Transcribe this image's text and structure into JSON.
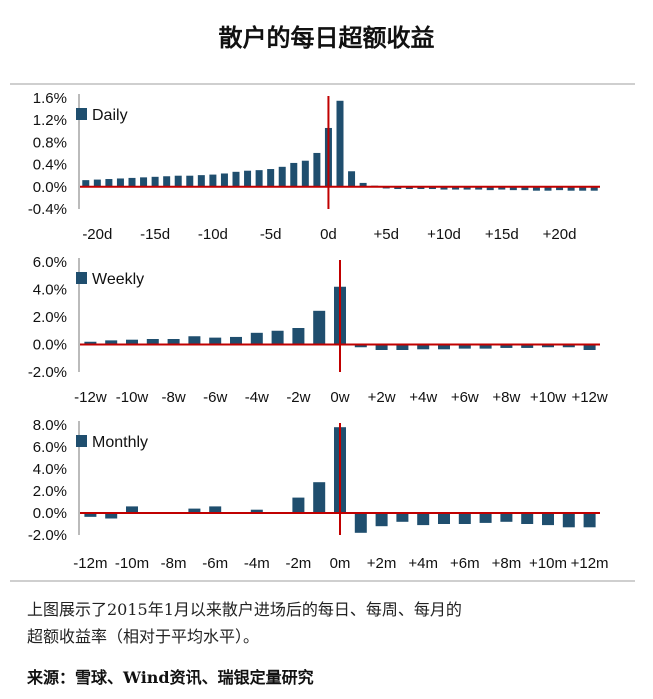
{
  "title": "散户的每日超额收益",
  "caption": "上图展示了2015年1月以来散户进场后的每日、每周、每月的\n超额收益率（相对于平均水平）。",
  "source": "来源：雪球、Wind资讯、瑞银定量研究",
  "colors": {
    "bar": "#1f4e6e",
    "axis_line": "#c00000",
    "divider": "#cfcfcf"
  },
  "chart_data": [
    {
      "type": "bar",
      "legend": "Daily",
      "ylim": [
        -0.4,
        1.6
      ],
      "yticks": [
        "-0.4%",
        "0.0%",
        "0.4%",
        "0.8%",
        "1.2%",
        "1.6%"
      ],
      "ytick_values": [
        -0.4,
        0.0,
        0.4,
        0.8,
        1.2,
        1.6
      ],
      "xmin": -21,
      "xmax": 23,
      "event_x": 0,
      "xticks": [
        "-20d",
        "-15d",
        "-10d",
        "-5d",
        "0d",
        "+5d",
        "+10d",
        "+15d",
        "+20d"
      ],
      "xtick_values": [
        -20,
        -15,
        -10,
        -5,
        0,
        5,
        10,
        15,
        20
      ],
      "x": [
        -21,
        -20,
        -19,
        -18,
        -17,
        -16,
        -15,
        -14,
        -13,
        -12,
        -11,
        -10,
        -9,
        -8,
        -7,
        -6,
        -5,
        -4,
        -3,
        -2,
        -1,
        0,
        1,
        2,
        3,
        4,
        5,
        6,
        7,
        8,
        9,
        10,
        11,
        12,
        13,
        14,
        15,
        16,
        17,
        18,
        19,
        20,
        21,
        22,
        23
      ],
      "values": [
        0.12,
        0.13,
        0.14,
        0.15,
        0.16,
        0.17,
        0.18,
        0.19,
        0.2,
        0.2,
        0.21,
        0.22,
        0.24,
        0.27,
        0.29,
        0.3,
        0.32,
        0.36,
        0.43,
        0.47,
        0.61,
        1.06,
        1.55,
        0.28,
        0.07,
        0.02,
        -0.03,
        -0.04,
        -0.04,
        -0.04,
        -0.04,
        -0.05,
        -0.05,
        -0.05,
        -0.05,
        -0.06,
        -0.05,
        -0.06,
        -0.06,
        -0.07,
        -0.07,
        -0.06,
        -0.07,
        -0.07,
        -0.07
      ]
    },
    {
      "type": "bar",
      "legend": "Weekly",
      "ylim": [
        -2.0,
        6.0
      ],
      "yticks": [
        "-2.0%",
        "0.0%",
        "2.0%",
        "4.0%",
        "6.0%"
      ],
      "ytick_values": [
        -2.0,
        0.0,
        2.0,
        4.0,
        6.0
      ],
      "xmin": -12,
      "xmax": 12,
      "event_x": 0,
      "xticks": [
        "-12w",
        "-10w",
        "-8w",
        "-6w",
        "-4w",
        "-2w",
        "0w",
        "+2w",
        "+4w",
        "+6w",
        "+8w",
        "+10w",
        "+12w"
      ],
      "xtick_values": [
        -12,
        -10,
        -8,
        -6,
        -4,
        -2,
        0,
        2,
        4,
        6,
        8,
        10,
        12
      ],
      "x": [
        -12,
        -11,
        -10,
        -9,
        -8,
        -7,
        -6,
        -5,
        -4,
        -3,
        -2,
        -1,
        0,
        1,
        2,
        3,
        4,
        5,
        6,
        7,
        8,
        9,
        10,
        11,
        12
      ],
      "values": [
        0.2,
        0.3,
        0.35,
        0.4,
        0.4,
        0.6,
        0.5,
        0.55,
        0.85,
        1.0,
        1.2,
        2.45,
        4.2,
        -0.2,
        -0.4,
        -0.4,
        -0.35,
        -0.35,
        -0.3,
        -0.3,
        -0.25,
        -0.25,
        -0.2,
        -0.2,
        -0.4
      ]
    },
    {
      "type": "bar",
      "legend": "Monthly",
      "ylim": [
        -2.0,
        8.0
      ],
      "yticks": [
        "-2.0%",
        "0.0%",
        "2.0%",
        "4.0%",
        "6.0%",
        "8.0%"
      ],
      "ytick_values": [
        -2.0,
        0.0,
        2.0,
        4.0,
        6.0,
        8.0
      ],
      "xmin": -12,
      "xmax": 12,
      "event_x": 0,
      "xticks": [
        "-12m",
        "-10m",
        "-8m",
        "-6m",
        "-4m",
        "-2m",
        "0m",
        "+2m",
        "+4m",
        "+6m",
        "+8m",
        "+10m",
        "+12m"
      ],
      "xtick_values": [
        -12,
        -10,
        -8,
        -6,
        -4,
        -2,
        0,
        2,
        4,
        6,
        8,
        10,
        12
      ],
      "x": [
        -12,
        -11,
        -10,
        -9,
        -8,
        -7,
        -6,
        -5,
        -4,
        -3,
        -2,
        -1,
        0,
        1,
        2,
        3,
        4,
        5,
        6,
        7,
        8,
        9,
        10,
        11,
        12
      ],
      "values": [
        -0.35,
        -0.5,
        0.6,
        0.0,
        0.0,
        0.4,
        0.6,
        0.0,
        0.3,
        0.0,
        1.4,
        2.8,
        7.8,
        -1.8,
        -1.2,
        -0.8,
        -1.1,
        -1.0,
        -1.0,
        -0.9,
        -0.8,
        -1.0,
        -1.1,
        -1.3,
        -1.3
      ]
    }
  ]
}
